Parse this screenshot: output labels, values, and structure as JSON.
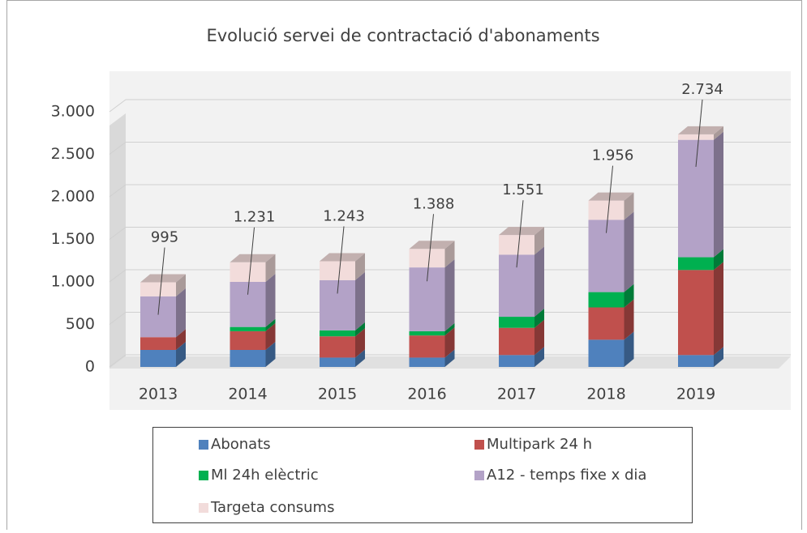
{
  "chart_data": {
    "type": "stacked-bar-3d",
    "title": "Evolució servei de contractació d'abonaments",
    "categories": [
      "2013",
      "2014",
      "2015",
      "2016",
      "2017",
      "2018",
      "2019"
    ],
    "series": [
      {
        "name": "Abonats",
        "color": "#4f81bd",
        "values": [
          200,
          200,
          110,
          110,
          140,
          320,
          140
        ]
      },
      {
        "name": "Multipark 24 h",
        "color": "#c0504d",
        "values": [
          150,
          220,
          250,
          260,
          320,
          380,
          1000
        ]
      },
      {
        "name": "Ml 24h elèctric",
        "color": "#00b050",
        "values": [
          0,
          50,
          70,
          50,
          130,
          180,
          150
        ]
      },
      {
        "name": "A12 - temps fixe x dia",
        "color": "#b3a2c7",
        "values": [
          480,
          530,
          590,
          750,
          730,
          850,
          1380
        ]
      },
      {
        "name": "Targeta consums",
        "color": "#f2dcdb",
        "values": [
          165,
          231,
          223,
          218,
          231,
          226,
          64
        ]
      }
    ],
    "totals": {
      "values": [
        995,
        1231,
        1243,
        1388,
        1551,
        1956,
        2734
      ],
      "value_labels": [
        "995",
        "1.231",
        "1.243",
        "1.388",
        "1.551",
        "1.956",
        "2.734"
      ]
    },
    "ylim": [
      0,
      3000
    ],
    "yticks": [
      0,
      500,
      {
        "value": 1000,
        "label": "1.000"
      },
      {
        "value": 1500,
        "label": "1.500"
      },
      {
        "value": 2000,
        "label": "2.000"
      },
      {
        "value": 2500,
        "label": "2.500"
      },
      {
        "value": 3000,
        "label": "3.000"
      }
    ],
    "grid": true,
    "legend": "bottom"
  }
}
